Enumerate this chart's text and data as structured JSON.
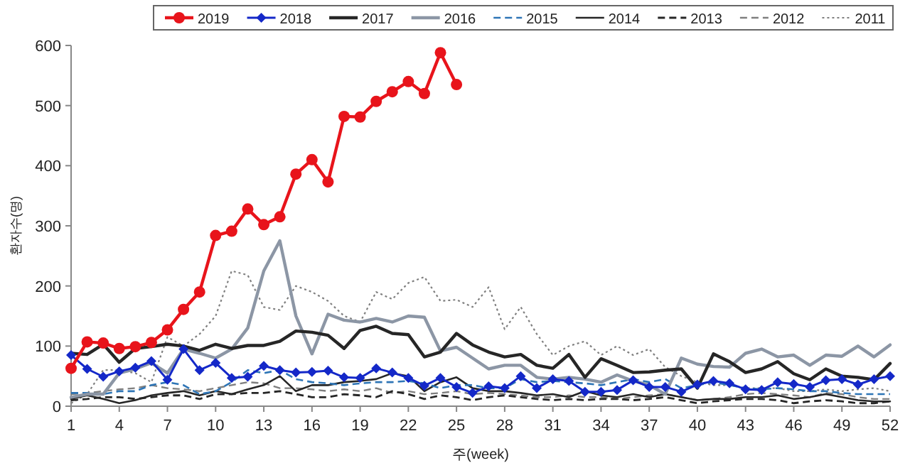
{
  "chart_data": {
    "type": "line",
    "xlabel": "주(week)",
    "ylabel": "환자수(명)",
    "x": [
      1,
      2,
      3,
      4,
      5,
      6,
      7,
      8,
      9,
      10,
      11,
      12,
      13,
      14,
      15,
      16,
      17,
      18,
      19,
      20,
      21,
      22,
      23,
      24,
      25,
      26,
      27,
      28,
      29,
      30,
      31,
      32,
      33,
      34,
      35,
      36,
      37,
      38,
      39,
      40,
      41,
      42,
      43,
      44,
      45,
      46,
      47,
      48,
      49,
      50,
      51,
      52
    ],
    "xlim": [
      1,
      52
    ],
    "xticks": [
      1,
      4,
      7,
      10,
      13,
      16,
      19,
      22,
      25,
      28,
      31,
      34,
      37,
      40,
      43,
      46,
      49,
      52
    ],
    "ylim": [
      0,
      600
    ],
    "yticks": [
      0,
      100,
      200,
      300,
      400,
      500,
      600
    ],
    "legend": "top",
    "series": [
      {
        "name": "2019",
        "color": "#e8141b",
        "marker": "circle",
        "line_style": "solid",
        "values": [
          63,
          107,
          105,
          96,
          99,
          106,
          127,
          161,
          190,
          284,
          291,
          328,
          302,
          315,
          386,
          410,
          373,
          482,
          481,
          507,
          523,
          540,
          520,
          588,
          535,
          null,
          null,
          null,
          null,
          null,
          null,
          null,
          null,
          null,
          null,
          null,
          null,
          null,
          null,
          null,
          null,
          null,
          null,
          null,
          null,
          null,
          null,
          null,
          null,
          null,
          null,
          null
        ]
      },
      {
        "name": "2018",
        "color": "#1428c8",
        "marker": "diamond",
        "line_style": "solid",
        "values": [
          85,
          62,
          49,
          58,
          64,
          75,
          44,
          95,
          60,
          72,
          47,
          49,
          67,
          60,
          56,
          57,
          59,
          48,
          47,
          63,
          56,
          47,
          34,
          47,
          32,
          22,
          33,
          30,
          50,
          30,
          45,
          42,
          24,
          24,
          27,
          43,
          32,
          32,
          24,
          36,
          42,
          38,
          28,
          27,
          40,
          37,
          32,
          43,
          45,
          36,
          45,
          50
        ]
      },
      {
        "name": "2017",
        "color": "#262626",
        "marker": "none",
        "line_style": "solid",
        "values": [
          88,
          86,
          103,
          73,
          96,
          99,
          103,
          100,
          93,
          103,
          96,
          101,
          101,
          108,
          125,
          123,
          118,
          96,
          126,
          133,
          121,
          119,
          82,
          90,
          121,
          102,
          90,
          82,
          86,
          68,
          63,
          86,
          48,
          79,
          68,
          56,
          57,
          60,
          62,
          30,
          87,
          74,
          56,
          62,
          74,
          54,
          44,
          62,
          50,
          48,
          44,
          71
        ]
      },
      {
        "name": "2016",
        "color": "#8c96a5",
        "marker": "none",
        "line_style": "solid",
        "values": [
          15,
          20,
          20,
          55,
          62,
          72,
          55,
          95,
          88,
          80,
          95,
          130,
          225,
          275,
          150,
          87,
          153,
          143,
          140,
          146,
          140,
          150,
          148,
          92,
          98,
          80,
          62,
          68,
          68,
          48,
          45,
          48,
          45,
          40,
          52,
          42,
          35,
          20,
          80,
          70,
          66,
          65,
          88,
          95,
          82,
          85,
          68,
          85,
          83,
          100,
          82,
          102
        ]
      },
      {
        "name": "2015",
        "color": "#2e75b6",
        "marker": "none",
        "line_style": "dashed",
        "values": [
          22,
          22,
          20,
          25,
          25,
          35,
          40,
          35,
          20,
          25,
          40,
          60,
          55,
          60,
          45,
          40,
          38,
          35,
          38,
          40,
          40,
          42,
          38,
          30,
          35,
          35,
          30,
          30,
          45,
          40,
          42,
          40,
          38,
          35,
          40,
          45,
          40,
          45,
          30,
          35,
          40,
          35,
          30,
          28,
          30,
          28,
          25,
          25,
          22,
          20,
          20,
          20
        ]
      },
      {
        "name": "2014",
        "color": "#262626",
        "marker": "none",
        "line_style": "solid",
        "values": [
          12,
          18,
          12,
          5,
          10,
          18,
          22,
          25,
          18,
          25,
          20,
          28,
          35,
          50,
          25,
          35,
          35,
          40,
          42,
          45,
          55,
          50,
          25,
          40,
          48,
          30,
          25,
          25,
          22,
          18,
          20,
          15,
          25,
          18,
          15,
          20,
          15,
          20,
          15,
          10,
          12,
          12,
          15,
          15,
          18,
          12,
          15,
          20,
          15,
          10,
          8,
          8
        ]
      },
      {
        "name": "2013",
        "color": "#262626",
        "marker": "none",
        "line_style": "dashed",
        "values": [
          10,
          12,
          15,
          15,
          12,
          15,
          18,
          18,
          12,
          20,
          20,
          22,
          22,
          25,
          20,
          15,
          15,
          20,
          18,
          15,
          25,
          20,
          12,
          18,
          15,
          10,
          15,
          18,
          15,
          12,
          10,
          12,
          10,
          12,
          12,
          10,
          12,
          15,
          10,
          5,
          8,
          10,
          12,
          12,
          10,
          5,
          8,
          10,
          8,
          5,
          5,
          8
        ]
      },
      {
        "name": "2012",
        "color": "#7f7f7f",
        "marker": "none",
        "line_style": "dashed",
        "values": [
          20,
          22,
          25,
          28,
          30,
          35,
          30,
          28,
          25,
          30,
          35,
          40,
          38,
          30,
          30,
          28,
          25,
          28,
          25,
          30,
          22,
          25,
          20,
          22,
          25,
          20,
          22,
          20,
          18,
          15,
          15,
          18,
          15,
          15,
          12,
          15,
          18,
          20,
          15,
          10,
          12,
          15,
          20,
          22,
          20,
          18,
          15,
          22,
          20,
          15,
          12,
          12
        ]
      },
      {
        "name": "2011",
        "color": "#7f7f7f",
        "marker": "none",
        "line_style": "dotted",
        "values": [
          5,
          20,
          60,
          60,
          55,
          40,
          115,
          100,
          120,
          150,
          225,
          218,
          165,
          160,
          200,
          190,
          175,
          150,
          140,
          190,
          178,
          205,
          215,
          175,
          177,
          165,
          198,
          128,
          165,
          120,
          85,
          100,
          108,
          85,
          100,
          85,
          95,
          65,
          50,
          40,
          35,
          35,
          30,
          30,
          30,
          25,
          25,
          28,
          25,
          28,
          30,
          25
        ]
      }
    ]
  }
}
